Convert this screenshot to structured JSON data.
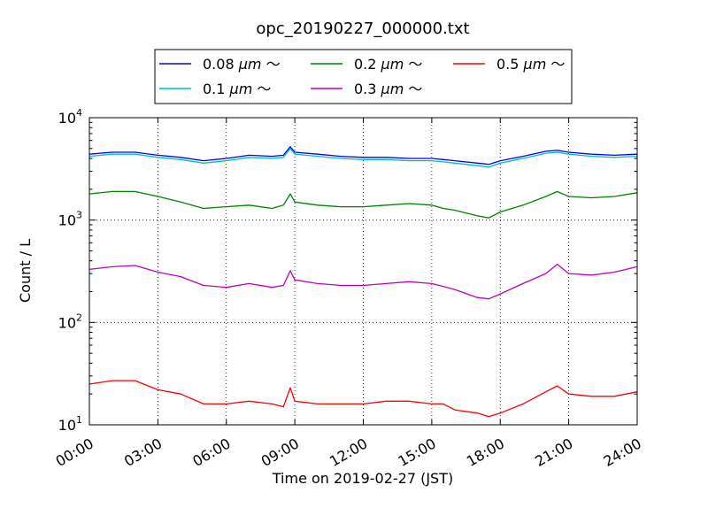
{
  "chart_data": {
    "type": "line",
    "title": "opc_20190227_000000.txt",
    "xlabel": "Time on 2019-02-27 (JST)",
    "ylabel": "Count / L",
    "x_unit": "hours",
    "xlim": [
      0,
      24
    ],
    "ylim": [
      10,
      10000
    ],
    "yscale": "log",
    "grid": true,
    "legend_position": "top-center",
    "x_ticks": [
      0,
      3,
      6,
      9,
      12,
      15,
      18,
      21,
      24
    ],
    "x_tick_labels": [
      "00:00",
      "03:00",
      "06:00",
      "09:00",
      "12:00",
      "15:00",
      "18:00",
      "21:00",
      "24:00"
    ],
    "y_ticks": [
      10,
      100,
      1000,
      10000
    ],
    "y_tick_labels": [
      {
        "base": "10",
        "exp": "1"
      },
      {
        "base": "10",
        "exp": "2"
      },
      {
        "base": "10",
        "exp": "3"
      },
      {
        "base": "10",
        "exp": "4"
      }
    ],
    "x": [
      0,
      1,
      2,
      3,
      4,
      5,
      6,
      7,
      8,
      8.5,
      8.8,
      9,
      10,
      11,
      12,
      13,
      14,
      15,
      15.5,
      16,
      17,
      17.5,
      18,
      19,
      20,
      20.5,
      21,
      22,
      23,
      24
    ],
    "series": [
      {
        "name": "0.08 μm ～",
        "label_main": "0.08 ",
        "label_unit": "μm",
        "label_tail": " ～",
        "color": "#0000ff",
        "values": [
          4400,
          4600,
          4600,
          4300,
          4100,
          3800,
          4000,
          4300,
          4200,
          4300,
          5200,
          4600,
          4400,
          4200,
          4100,
          4100,
          4000,
          4000,
          3900,
          3800,
          3600,
          3500,
          3800,
          4200,
          4700,
          4800,
          4600,
          4400,
          4300,
          4400
        ]
      },
      {
        "name": "0.1 μm ～",
        "label_main": "0.1 ",
        "label_unit": "μm",
        "label_tail": " ～",
        "color": "#00bfbf",
        "values": [
          4200,
          4400,
          4400,
          4100,
          3900,
          3600,
          3800,
          4100,
          4000,
          4100,
          5000,
          4400,
          4200,
          4000,
          3900,
          3900,
          3800,
          3800,
          3700,
          3600,
          3400,
          3300,
          3600,
          4000,
          4500,
          4600,
          4400,
          4200,
          4100,
          4200
        ]
      },
      {
        "name": "0.2 μm ～",
        "label_main": "0.2 ",
        "label_unit": "μm",
        "label_tail": " ～",
        "color": "#008000",
        "values": [
          1800,
          1900,
          1900,
          1700,
          1500,
          1300,
          1350,
          1400,
          1300,
          1400,
          1800,
          1500,
          1400,
          1350,
          1350,
          1400,
          1450,
          1400,
          1300,
          1250,
          1100,
          1050,
          1200,
          1400,
          1700,
          1900,
          1700,
          1650,
          1700,
          1850
        ]
      },
      {
        "name": "0.3 μm ～",
        "label_main": "0.3 ",
        "label_unit": "μm",
        "label_tail": " ～",
        "color": "#bf00bf",
        "values": [
          330,
          350,
          360,
          310,
          280,
          230,
          220,
          240,
          220,
          230,
          320,
          260,
          240,
          230,
          230,
          240,
          250,
          240,
          225,
          210,
          175,
          170,
          190,
          240,
          300,
          370,
          300,
          290,
          310,
          350
        ]
      },
      {
        "name": "0.5 μm ～",
        "label_main": "0.5 ",
        "label_unit": "μm",
        "label_tail": " ～",
        "color": "#ff0000",
        "values": [
          25,
          27,
          27,
          22,
          20,
          16,
          16,
          17,
          16,
          15,
          23,
          17,
          16,
          16,
          16,
          17,
          17,
          16,
          16,
          14,
          13,
          12,
          13,
          16,
          21,
          24,
          20,
          19,
          19,
          21
        ]
      }
    ]
  }
}
